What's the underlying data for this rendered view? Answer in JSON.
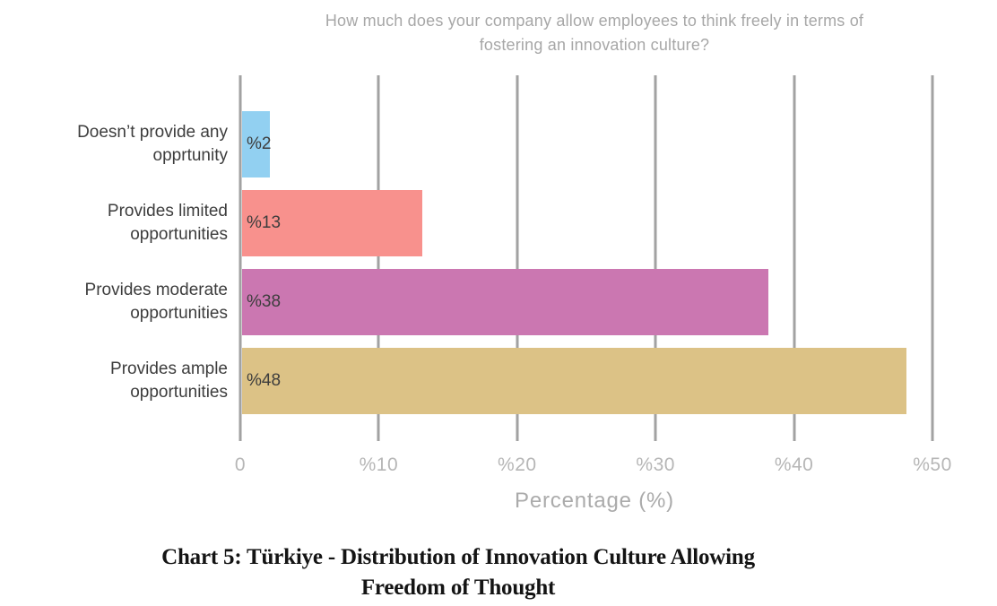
{
  "chart_data": {
    "type": "bar",
    "orientation": "horizontal",
    "title": "How much does your company allow employees to think freely in terms of fostering an innovation culture?",
    "title_lines": [
      "How much does your company allow employees to think freely in terms of",
      "fostering an innovation culture?"
    ],
    "categories": [
      "Doesn’t provide any opprtunity",
      "Provides limited opportunities",
      "Provides moderate opportunities",
      "Provides ample opportunities"
    ],
    "category_lines": [
      [
        "Doesn’t provide any",
        "opprtunity"
      ],
      [
        "Provides limited",
        "opportunities"
      ],
      [
        "Provides moderate",
        "opportunities"
      ],
      [
        "Provides ample",
        "opportunities"
      ]
    ],
    "values": [
      2,
      13,
      38,
      48
    ],
    "value_labels": [
      "%2",
      "%13",
      "%38",
      "%48"
    ],
    "bar_colors": [
      "#92D0F1",
      "#F8918D",
      "#CB77B1",
      "#DCC286"
    ],
    "xlabel": "Percentage (%)",
    "xlim": [
      0,
      50
    ],
    "x_ticks": [
      "0",
      "%10",
      "%20",
      "%30",
      "%40",
      "%50"
    ],
    "grid": "vertical",
    "legend": "none"
  },
  "style": {
    "gridline_color": "#A2A2A2",
    "title_text_color": "#A7A7A7",
    "tick_label_color": "#B6B6B6",
    "axis_label_color": "#ABABAB",
    "label_text_color": "#3D3D3D",
    "caption_color": "#141414",
    "background_color": "#FFFFFF"
  },
  "caption": {
    "line1": "Chart 5: Türkiye - Distribution of Innovation Culture Allowing",
    "line2": "Freedom of Thought"
  }
}
